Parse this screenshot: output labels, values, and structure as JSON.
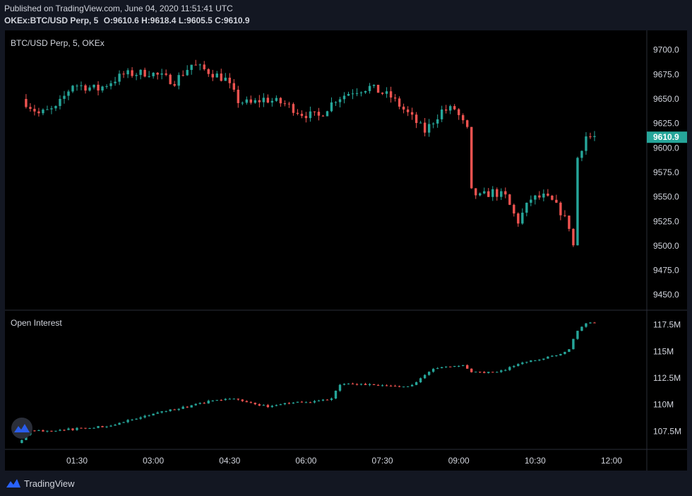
{
  "header": {
    "published": "Published on TradingView.com, June 04, 2020 11:51:41 UTC",
    "symbol": "OKEx:BTC/USD Perp, 5",
    "o_label": "O:",
    "o": "9610.6",
    "h_label": "H:",
    "h": "9618.4",
    "l_label": "L:",
    "l": "9605.5",
    "c_label": "C:",
    "c": "9610.9"
  },
  "price_pane": {
    "legend": "BTC/USD Perp, 5, OKEx",
    "last_price": "9610.9"
  },
  "oi_pane": {
    "legend": "Open Interest"
  },
  "footer": {
    "brand": "TradingView"
  },
  "colors": {
    "up": "#26a69a",
    "down": "#ef5350",
    "bg": "#000000",
    "grid": "#2a2e39",
    "text": "#d1d4dc",
    "badge": "#26a69a"
  },
  "chart_data": [
    {
      "type": "candlestick",
      "title": "BTC/USD Perp, 5, OKEx",
      "xlabel": "",
      "ylabel": "",
      "x_ticks": [
        "01:30",
        "03:00",
        "04:30",
        "06:00",
        "07:30",
        "09:00",
        "10:30",
        "12:00"
      ],
      "y_ticks": [
        "9700.0",
        "9675.0",
        "9650.0",
        "9625.0",
        "9600.0",
        "9575.0",
        "9550.0",
        "9525.0",
        "9500.0",
        "9475.0",
        "9450.0"
      ],
      "ylim": [
        9435,
        9720
      ],
      "xlim": [
        "00:25",
        "12:00"
      ],
      "grid": false,
      "last_value": 9610.9,
      "anchor_points": [
        {
          "t": "00:30",
          "v": 9650
        },
        {
          "t": "00:50",
          "v": 9635
        },
        {
          "t": "01:10",
          "v": 9640
        },
        {
          "t": "01:30",
          "v": 9665
        },
        {
          "t": "02:00",
          "v": 9660
        },
        {
          "t": "02:30",
          "v": 9675
        },
        {
          "t": "03:00",
          "v": 9677
        },
        {
          "t": "03:30",
          "v": 9668
        },
        {
          "t": "03:50",
          "v": 9685
        },
        {
          "t": "04:10",
          "v": 9678
        },
        {
          "t": "04:30",
          "v": 9670
        },
        {
          "t": "04:45",
          "v": 9648
        },
        {
          "t": "05:00",
          "v": 9645
        },
        {
          "t": "05:15",
          "v": 9650
        },
        {
          "t": "05:40",
          "v": 9645
        },
        {
          "t": "06:00",
          "v": 9635
        },
        {
          "t": "06:20",
          "v": 9632
        },
        {
          "t": "06:40",
          "v": 9650
        },
        {
          "t": "07:00",
          "v": 9658
        },
        {
          "t": "07:20",
          "v": 9662
        },
        {
          "t": "07:45",
          "v": 9652
        },
        {
          "t": "08:05",
          "v": 9635
        },
        {
          "t": "08:25",
          "v": 9617
        },
        {
          "t": "08:45",
          "v": 9638
        },
        {
          "t": "09:00",
          "v": 9640
        },
        {
          "t": "09:15",
          "v": 9618
        },
        {
          "t": "09:20",
          "v": 9555
        },
        {
          "t": "09:30",
          "v": 9550
        },
        {
          "t": "09:45",
          "v": 9555
        },
        {
          "t": "10:00",
          "v": 9550
        },
        {
          "t": "10:10",
          "v": 9532
        },
        {
          "t": "10:15",
          "v": 9525
        },
        {
          "t": "10:30",
          "v": 9548
        },
        {
          "t": "10:45",
          "v": 9550
        },
        {
          "t": "10:55",
          "v": 9545
        },
        {
          "t": "11:05",
          "v": 9535
        },
        {
          "t": "11:15",
          "v": 9520
        },
        {
          "t": "11:20",
          "v": 9500
        },
        {
          "t": "11:25",
          "v": 9590
        },
        {
          "t": "11:35",
          "v": 9612
        },
        {
          "t": "11:40",
          "v": 9611
        }
      ]
    },
    {
      "type": "candlestick",
      "title": "Open Interest",
      "xlabel": "",
      "ylabel": "",
      "y_ticks": [
        "117.5M",
        "115M",
        "112.5M",
        "110M",
        "107.5M"
      ],
      "ylim": [
        105.8,
        118.8
      ],
      "grid": false,
      "anchor_points": [
        {
          "t": "00:25",
          "v": 106.4
        },
        {
          "t": "00:40",
          "v": 107.5
        },
        {
          "t": "01:30",
          "v": 107.7
        },
        {
          "t": "02:10",
          "v": 108.0
        },
        {
          "t": "02:40",
          "v": 108.6
        },
        {
          "t": "03:20",
          "v": 109.4
        },
        {
          "t": "03:50",
          "v": 109.9
        },
        {
          "t": "04:20",
          "v": 110.5
        },
        {
          "t": "04:40",
          "v": 110.5
        },
        {
          "t": "05:00",
          "v": 110.2
        },
        {
          "t": "05:20",
          "v": 109.8
        },
        {
          "t": "05:50",
          "v": 110.2
        },
        {
          "t": "06:20",
          "v": 110.3
        },
        {
          "t": "06:35",
          "v": 110.6
        },
        {
          "t": "06:45",
          "v": 111.9
        },
        {
          "t": "07:10",
          "v": 111.9
        },
        {
          "t": "07:40",
          "v": 111.7
        },
        {
          "t": "08:10",
          "v": 111.8
        },
        {
          "t": "08:30",
          "v": 113.1
        },
        {
          "t": "08:45",
          "v": 113.6
        },
        {
          "t": "09:10",
          "v": 113.7
        },
        {
          "t": "09:20",
          "v": 113.1
        },
        {
          "t": "09:40",
          "v": 113.0
        },
        {
          "t": "10:00",
          "v": 113.2
        },
        {
          "t": "10:10",
          "v": 113.7
        },
        {
          "t": "10:30",
          "v": 114.1
        },
        {
          "t": "10:50",
          "v": 114.5
        },
        {
          "t": "11:05",
          "v": 114.8
        },
        {
          "t": "11:15",
          "v": 115.2
        },
        {
          "t": "11:25",
          "v": 117.0
        },
        {
          "t": "11:35",
          "v": 117.7
        },
        {
          "t": "11:40",
          "v": 117.7
        }
      ]
    }
  ]
}
